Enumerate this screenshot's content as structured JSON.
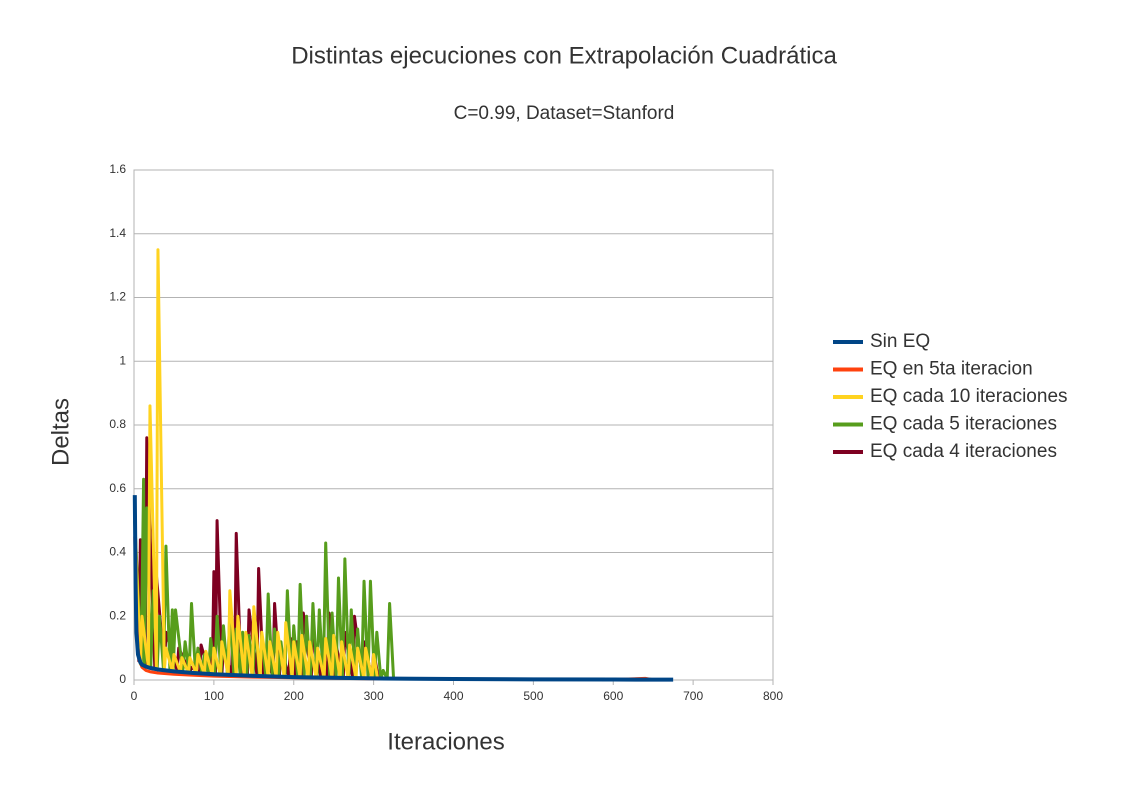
{
  "chart_data": {
    "type": "line",
    "title": "Distintas ejecuciones con Extrapolación Cuadrática",
    "subtitle": "C=0.99, Dataset=Stanford",
    "x_label": "Iteraciones",
    "y_label": "Deltas",
    "xlim": [
      0,
      800
    ],
    "xticks": [
      0,
      100,
      200,
      300,
      400,
      500,
      600,
      700,
      800
    ],
    "ylim": [
      0,
      1.6
    ],
    "yticks": [
      0,
      0.2,
      0.4,
      0.6,
      0.8,
      1,
      1.2,
      1.4,
      1.6
    ],
    "grid": true,
    "legend": "right",
    "series": [
      {
        "name": "Sin EQ",
        "color": "#004586",
        "x": [
          1,
          2,
          3,
          5,
          8,
          10,
          15,
          20,
          30,
          50,
          75,
          100,
          150,
          200,
          250,
          300,
          350,
          400,
          500,
          600,
          675
        ],
        "values": [
          0.58,
          0.3,
          0.15,
          0.08,
          0.055,
          0.048,
          0.042,
          0.038,
          0.033,
          0.027,
          0.022,
          0.018,
          0.013,
          0.009,
          0.007,
          0.005,
          0.004,
          0.003,
          0.002,
          0.0015,
          0.001
        ]
      },
      {
        "name": "EQ en 5ta iteracion",
        "color": "#ff420e",
        "x": [
          1,
          3,
          5,
          7,
          10,
          15,
          20,
          30,
          50,
          75,
          100,
          150,
          200,
          300,
          400,
          500,
          600,
          640,
          650
        ],
        "values": [
          0.45,
          0.2,
          0.1,
          0.06,
          0.04,
          0.03,
          0.026,
          0.022,
          0.018,
          0.015,
          0.012,
          0.009,
          0.007,
          0.004,
          0.003,
          0.002,
          0.0015,
          0.005,
          0.001
        ]
      },
      {
        "name": "EQ cada 10 iteraciones",
        "color": "#ffd320",
        "x": [
          1,
          8,
          10,
          18,
          20,
          28,
          30,
          38,
          40,
          48,
          50,
          58,
          60,
          68,
          70,
          78,
          80,
          88,
          90,
          98,
          100,
          108,
          110,
          118,
          120,
          128,
          130,
          138,
          140,
          148,
          150,
          158,
          160,
          168,
          170,
          178,
          180,
          188,
          190,
          198,
          200,
          208,
          210,
          218,
          220,
          228,
          230,
          238,
          240,
          248,
          250,
          258,
          260,
          268,
          270,
          278,
          280,
          288,
          290,
          298,
          300,
          305
        ],
        "values": [
          0.5,
          0.05,
          0.2,
          0.04,
          0.86,
          0.035,
          1.35,
          0.03,
          0.1,
          0.028,
          0.08,
          0.025,
          0.07,
          0.022,
          0.07,
          0.02,
          0.08,
          0.018,
          0.09,
          0.016,
          0.1,
          0.015,
          0.12,
          0.014,
          0.28,
          0.013,
          0.2,
          0.012,
          0.15,
          0.011,
          0.23,
          0.01,
          0.15,
          0.01,
          0.12,
          0.009,
          0.15,
          0.009,
          0.18,
          0.008,
          0.12,
          0.008,
          0.14,
          0.007,
          0.12,
          0.007,
          0.1,
          0.006,
          0.13,
          0.006,
          0.14,
          0.005,
          0.12,
          0.005,
          0.11,
          0.005,
          0.1,
          0.004,
          0.1,
          0.004,
          0.08,
          0.004
        ]
      },
      {
        "name": "EQ cada 5 iteraciones",
        "color": "#579d1c",
        "x": [
          1,
          9,
          12,
          13,
          16,
          21,
          24,
          29,
          32,
          37,
          40,
          45,
          48,
          49,
          52,
          61,
          64,
          69,
          72,
          77,
          80,
          85,
          88,
          93,
          96,
          101,
          104,
          109,
          112,
          117,
          120,
          125,
          128,
          133,
          136,
          141,
          144,
          149,
          152,
          157,
          160,
          165,
          168,
          173,
          176,
          181,
          184,
          189,
          192,
          197,
          200,
          205,
          208,
          213,
          216,
          221,
          224,
          229,
          232,
          237,
          240,
          245,
          248,
          253,
          256,
          261,
          264,
          269,
          272,
          277,
          280,
          285,
          288,
          293,
          296,
          301,
          304,
          309,
          312,
          317,
          320,
          325
        ],
        "values": [
          0.5,
          0.05,
          0.63,
          0.045,
          0.54,
          0.04,
          0.28,
          0.035,
          0.2,
          0.03,
          0.42,
          0.028,
          0.22,
          0.027,
          0.22,
          0.025,
          0.12,
          0.024,
          0.24,
          0.022,
          0.1,
          0.02,
          0.08,
          0.019,
          0.13,
          0.018,
          0.2,
          0.017,
          0.17,
          0.016,
          0.21,
          0.015,
          0.16,
          0.014,
          0.15,
          0.013,
          0.14,
          0.012,
          0.18,
          0.012,
          0.14,
          0.011,
          0.27,
          0.011,
          0.16,
          0.01,
          0.12,
          0.01,
          0.28,
          0.009,
          0.17,
          0.009,
          0.3,
          0.008,
          0.2,
          0.008,
          0.24,
          0.007,
          0.22,
          0.007,
          0.43,
          0.007,
          0.21,
          0.006,
          0.32,
          0.006,
          0.38,
          0.006,
          0.22,
          0.005,
          0.16,
          0.005,
          0.31,
          0.005,
          0.31,
          0.005,
          0.15,
          0.004,
          0.03,
          0.004,
          0.24,
          0.003
        ]
      },
      {
        "name": "EQ cada 4 iteraciones",
        "color": "#7e0021",
        "x": [
          1,
          6,
          8,
          14,
          16,
          26,
          28,
          38,
          40,
          54,
          56,
          70,
          72,
          82,
          84,
          94,
          96,
          98,
          100,
          102,
          104,
          110,
          112,
          122,
          124,
          126,
          128,
          134,
          136,
          142,
          144,
          154,
          156,
          162,
          164,
          174,
          176,
          182,
          184,
          194,
          196,
          202,
          204,
          210,
          212,
          222,
          224,
          234,
          236,
          242,
          244,
          250,
          252,
          262,
          264,
          274,
          276,
          286,
          288,
          298,
          300,
          306
        ],
        "values": [
          0.5,
          0.06,
          0.44,
          0.05,
          0.76,
          0.04,
          0.33,
          0.035,
          0.15,
          0.03,
          0.1,
          0.025,
          0.04,
          0.022,
          0.11,
          0.02,
          0.1,
          0.02,
          0.34,
          0.019,
          0.5,
          0.018,
          0.1,
          0.016,
          0.16,
          0.016,
          0.46,
          0.015,
          0.12,
          0.014,
          0.22,
          0.013,
          0.35,
          0.012,
          0.08,
          0.011,
          0.24,
          0.011,
          0.1,
          0.01,
          0.13,
          0.01,
          0.12,
          0.009,
          0.21,
          0.008,
          0.15,
          0.008,
          0.1,
          0.007,
          0.21,
          0.007,
          0.12,
          0.006,
          0.15,
          0.006,
          0.2,
          0.005,
          0.12,
          0.005,
          0.09,
          0.004
        ]
      }
    ]
  }
}
